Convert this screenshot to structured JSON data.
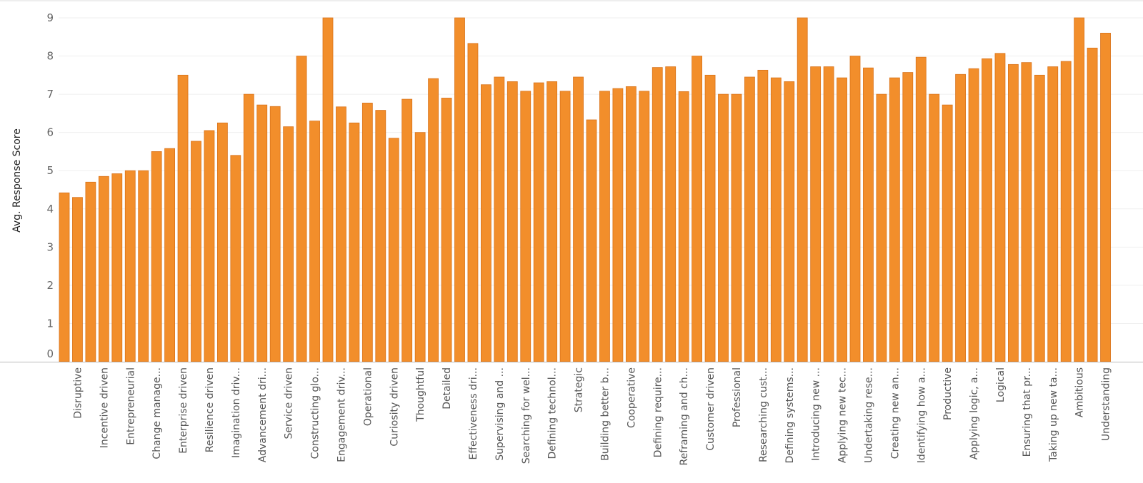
{
  "chart_data": {
    "type": "bar",
    "ylabel": "Avg. Response Score",
    "ylim": [
      0,
      9
    ],
    "yticks": [
      0,
      1,
      2,
      3,
      4,
      5,
      6,
      7,
      8,
      9
    ],
    "grid": true,
    "bar_color": "#f28e2b",
    "bar_edge_color": "#d9731a",
    "categories": [
      "",
      "Disruptive",
      "",
      "Incentive driven",
      "",
      "Entrepreneurial",
      "",
      "Change manage...",
      "",
      "Enterprise driven",
      "",
      "Resilience driven",
      "",
      "Imagination driv...",
      "",
      "Advancement dri...",
      "",
      "Service driven",
      "",
      "Constructing glo...",
      "",
      "Engagement driv...",
      "",
      "Operational",
      "",
      "Curiosity driven",
      "",
      "Thoughtful",
      "",
      "Detailed",
      "",
      "Effectiveness dri...",
      "",
      "Supervising and ...",
      "",
      "Searching for wel...",
      "",
      "Defining technol...",
      "",
      "Strategic",
      "",
      "Building better b...",
      "",
      "Cooperative",
      "",
      "Defining require...",
      "",
      "Reframing and ch...",
      "",
      "Customer driven",
      "",
      "Professional",
      "",
      "Researching cust...",
      "",
      "Defining systems...",
      "",
      "Introducing new ...",
      "",
      "Applying new tec...",
      "",
      "Undertaking rese...",
      "",
      "Creating new an...",
      "",
      "Identifying how a...",
      "",
      "Productive",
      "",
      "Applying logic, a...",
      "",
      "Logical",
      "",
      "Ensuring that pr...",
      "",
      "Taking up new ta...",
      "",
      "Ambitious",
      "",
      "Understanding"
    ],
    "values": [
      4.42,
      4.3,
      4.7,
      4.85,
      4.92,
      5.0,
      5.0,
      5.5,
      5.58,
      7.5,
      5.77,
      6.05,
      6.25,
      5.4,
      7.0,
      6.72,
      6.68,
      6.15,
      8.0,
      6.3,
      9.0,
      6.67,
      6.25,
      6.77,
      6.58,
      5.85,
      6.87,
      6.0,
      7.41,
      6.9,
      9.0,
      8.33,
      7.25,
      7.45,
      7.33,
      7.08,
      7.3,
      7.33,
      7.08,
      7.45,
      6.33,
      7.08,
      7.15,
      7.2,
      7.08,
      7.7,
      7.72,
      7.07,
      8.0,
      7.5,
      7.0,
      7.0,
      7.45,
      7.63,
      7.43,
      7.33,
      9.0,
      7.72,
      7.72,
      7.43,
      8.0,
      7.69,
      7.0,
      7.43,
      7.57,
      7.97,
      7.0,
      6.72,
      7.52,
      7.67,
      7.93,
      8.07,
      7.78,
      7.83,
      7.5,
      7.72,
      7.86,
      9.0,
      8.21,
      8.6
    ]
  }
}
